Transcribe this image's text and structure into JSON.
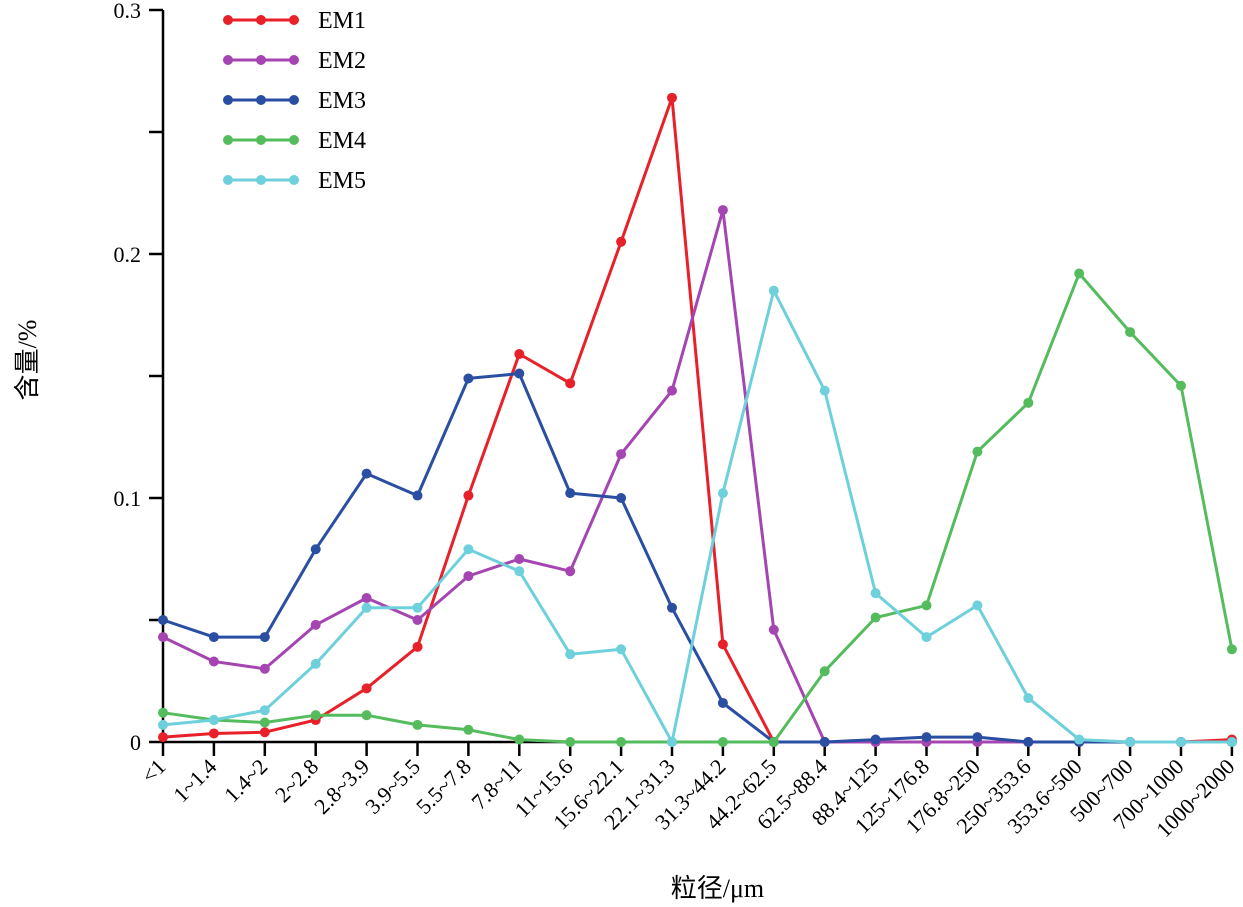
{
  "chart_data": {
    "type": "line",
    "xlabel": "粒径/μm",
    "ylabel": "含量/%",
    "ylim": [
      0,
      0.3
    ],
    "yticks": [
      "0",
      "0.1",
      "0.2",
      "0.3"
    ],
    "legend_position": "top-left",
    "grid": false,
    "categories": [
      "<1",
      "1~1.4",
      "1.4~2",
      "2~2.8",
      "2.8~3.9",
      "3.9~5.5",
      "5.5~7.8",
      "7.8~11",
      "11~15.6",
      "15.6~22.1",
      "22.1~31.3",
      "31.3~44.2",
      "44.2~62.5",
      "62.5~88.4",
      "88.4~125",
      "125~176.8",
      "176.8~250",
      "250~353.6",
      "353.6~500",
      "500~700",
      "700~1000",
      "1000~2000"
    ],
    "series": [
      {
        "name": "EM1",
        "color": "#e8202a",
        "values": [
          0.002,
          0.0035,
          0.004,
          0.009,
          0.022,
          0.039,
          0.101,
          0.159,
          0.147,
          0.205,
          0.264,
          0.04,
          0.0,
          0.0,
          0.0,
          0.0,
          0.0,
          0.0,
          0.0,
          0.0,
          0.0,
          0.001
        ]
      },
      {
        "name": "EM2",
        "color": "#a445b2",
        "values": [
          0.043,
          0.033,
          0.03,
          0.048,
          0.059,
          0.05,
          0.068,
          0.075,
          0.07,
          0.118,
          0.144,
          0.218,
          0.046,
          0.0,
          0.0,
          0.0,
          0.0,
          0.0,
          0.0,
          0.0,
          0.0,
          0.0
        ]
      },
      {
        "name": "EM3",
        "color": "#2a4ea2",
        "values": [
          0.05,
          0.043,
          0.043,
          0.079,
          0.11,
          0.101,
          0.149,
          0.151,
          0.102,
          0.1,
          0.055,
          0.016,
          0.0,
          0.0,
          0.001,
          0.002,
          0.002,
          0.0,
          0.0,
          0.0,
          0.0,
          0.0
        ]
      },
      {
        "name": "EM4",
        "color": "#55bc5e",
        "values": [
          0.012,
          0.009,
          0.008,
          0.011,
          0.011,
          0.007,
          0.005,
          0.001,
          0.0,
          0.0,
          0.0,
          0.0,
          0.0,
          0.029,
          0.051,
          0.056,
          0.119,
          0.139,
          0.192,
          0.168,
          0.146,
          0.038
        ]
      },
      {
        "name": "EM5",
        "color": "#6ed0db",
        "values": [
          0.007,
          0.009,
          0.013,
          0.032,
          0.055,
          0.055,
          0.079,
          0.07,
          0.036,
          0.038,
          0.0,
          0.102,
          0.185,
          0.144,
          0.061,
          0.043,
          0.056,
          0.018,
          0.001,
          0.0,
          0.0,
          0.0
        ]
      }
    ]
  }
}
